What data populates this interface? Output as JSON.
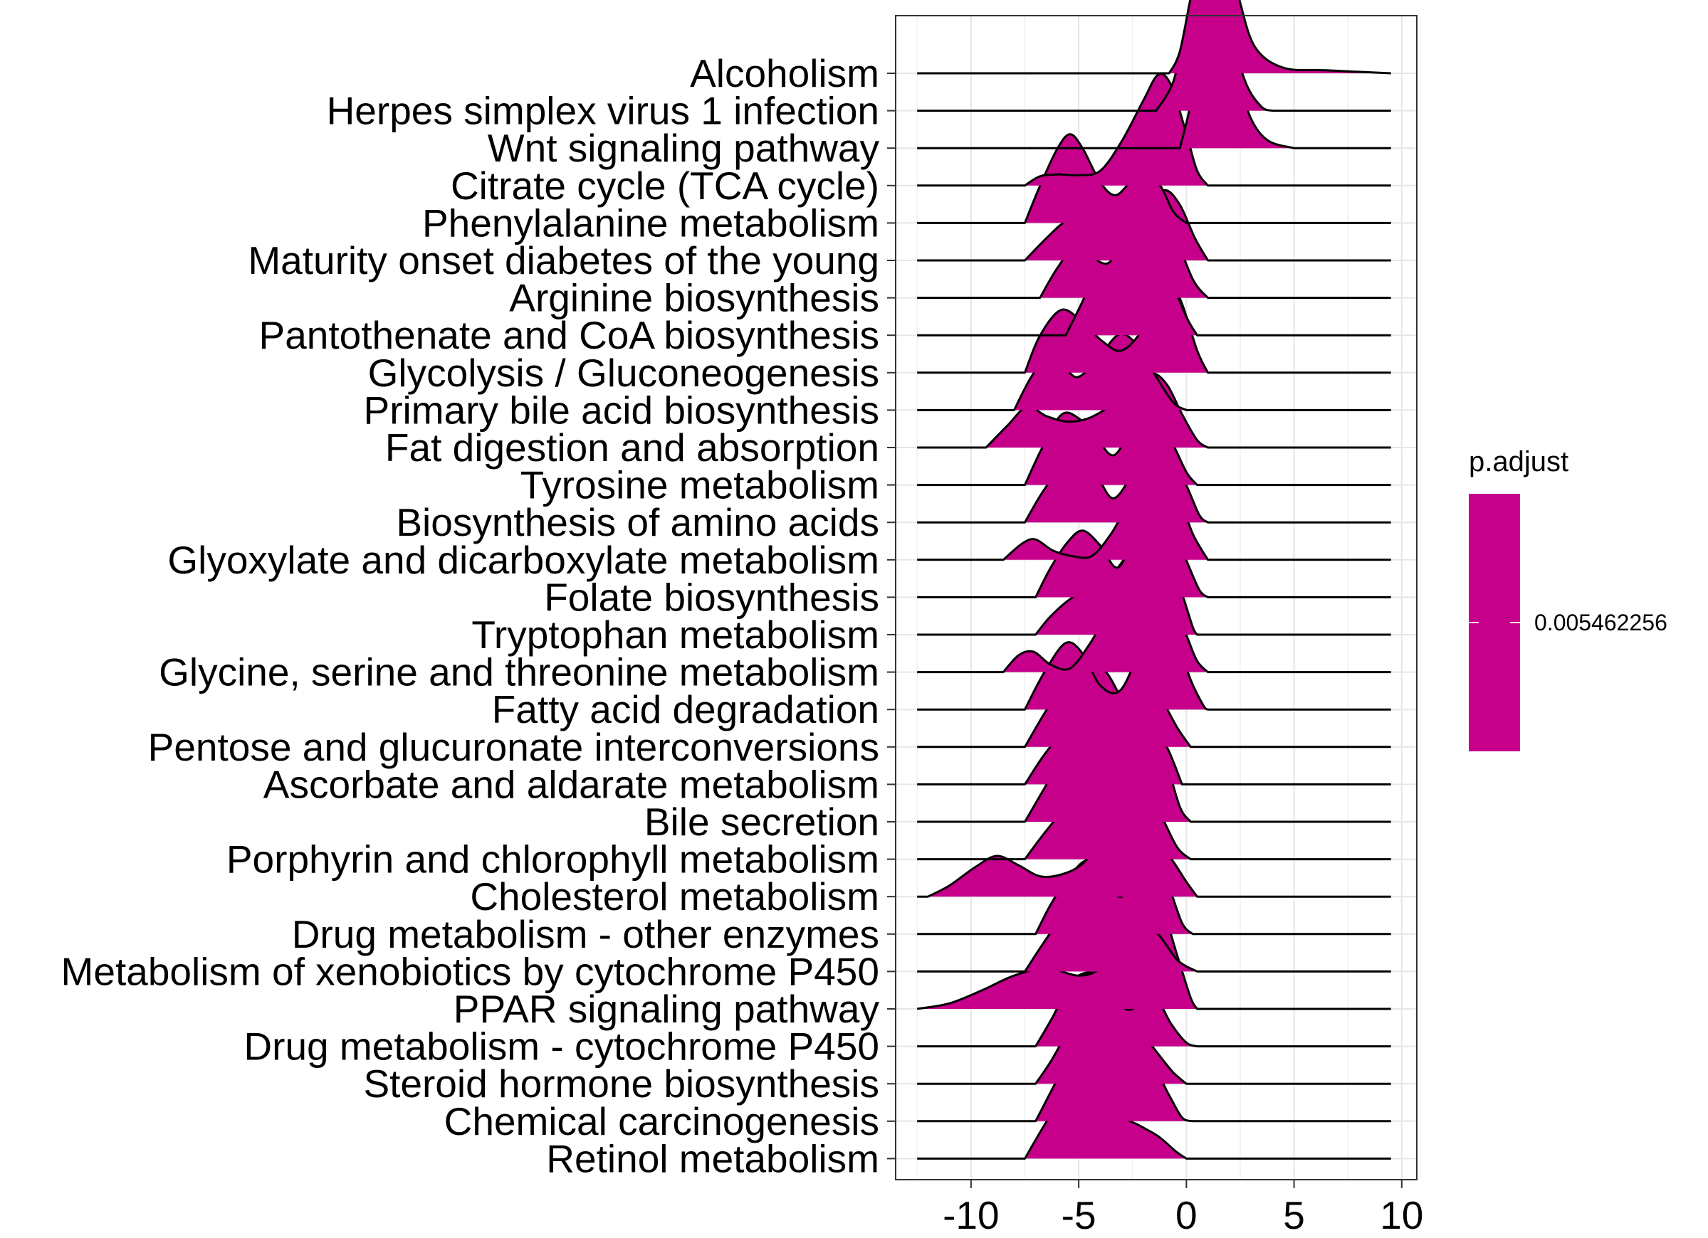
{
  "chart_data": {
    "type": "ridgeline",
    "xlim": [
      -13.5,
      10.7
    ],
    "x_ticks": [
      -10,
      -5,
      0,
      5,
      10
    ],
    "x_tick_labels": [
      "-10",
      "-5",
      "0",
      "5",
      "10"
    ],
    "grid": true,
    "legend": {
      "title": "p.adjust",
      "label": "0.005462256",
      "placement": "right",
      "color": "#C6008B"
    },
    "fill_color": "#C6008B",
    "categories": [
      "Alcoholism",
      "Herpes simplex virus 1 infection",
      "Wnt signaling pathway",
      "Citrate cycle (TCA cycle)",
      "Phenylalanine metabolism",
      "Maturity onset diabetes of the young",
      "Arginine biosynthesis",
      "Pantothenate and CoA biosynthesis",
      "Glycolysis / Gluconeogenesis",
      "Primary bile acid biosynthesis",
      "Fat digestion and absorption",
      "Tyrosine metabolism",
      "Biosynthesis of amino acids",
      "Glyoxylate and dicarboxylate metabolism",
      "Folate biosynthesis",
      "Tryptophan metabolism",
      "Glycine, serine and threonine metabolism",
      "Fatty acid degradation",
      "Pentose and glucuronate interconversions",
      "Ascorbate and aldarate metabolism",
      "Bile secretion",
      "Porphyrin and chlorophyll metabolism",
      "Cholesterol metabolism",
      "Drug metabolism - other enzymes",
      "Metabolism of xenobiotics by cytochrome P450",
      "PPAR signaling pathway",
      "Drug metabolism - cytochrome P450",
      "Steroid hormone biosynthesis",
      "Chemical carcinogenesis",
      "Retinol metabolism"
    ],
    "x_range": [
      -12.5,
      9.5
    ],
    "densities": [
      [
        [
          -0.8,
          0
        ],
        [
          -0.3,
          0.6
        ],
        [
          0.3,
          2.3
        ],
        [
          1.0,
          3.6
        ],
        [
          1.5,
          3.9
        ],
        [
          2.0,
          3.2
        ],
        [
          2.5,
          1.9
        ],
        [
          3.2,
          0.7
        ],
        [
          4.5,
          0.15
        ],
        [
          6.5,
          0.08
        ],
        [
          9.5,
          0
        ]
      ],
      [
        [
          -1.4,
          0
        ],
        [
          -0.6,
          0.8
        ],
        [
          0,
          2.4
        ],
        [
          0.5,
          3.5
        ],
        [
          1.0,
          3.9
        ],
        [
          1.5,
          3.4
        ],
        [
          2.1,
          2.0
        ],
        [
          2.8,
          0.7
        ],
        [
          3.5,
          0.1
        ],
        [
          4.0,
          0
        ]
      ],
      [
        [
          -0.3,
          0
        ],
        [
          0.2,
          1.2
        ],
        [
          0.7,
          2.9
        ],
        [
          1.2,
          3.6
        ],
        [
          1.8,
          3.1
        ],
        [
          2.4,
          1.9
        ],
        [
          3.0,
          0.8
        ],
        [
          3.8,
          0.2
        ],
        [
          5.0,
          0
        ]
      ],
      [
        [
          -7.5,
          0
        ],
        [
          -6.8,
          0.25
        ],
        [
          -6.0,
          0.3
        ],
        [
          -5.0,
          0.28
        ],
        [
          -4.0,
          0.4
        ],
        [
          -3.0,
          1.2
        ],
        [
          -2.0,
          2.3
        ],
        [
          -1.3,
          3.0
        ],
        [
          -0.7,
          2.7
        ],
        [
          0.0,
          1.4
        ],
        [
          0.5,
          0.4
        ],
        [
          1.0,
          0
        ]
      ],
      [
        [
          -7.5,
          0
        ],
        [
          -6.8,
          1.0
        ],
        [
          -6.0,
          2.0
        ],
        [
          -5.4,
          2.4
        ],
        [
          -4.8,
          2.0
        ],
        [
          -4.0,
          1.1
        ],
        [
          -3.3,
          0.75
        ],
        [
          -2.6,
          1.1
        ],
        [
          -1.9,
          1.4
        ],
        [
          -1.2,
          1.0
        ],
        [
          -0.6,
          0.3
        ],
        [
          0,
          0
        ]
      ],
      [
        [
          -7.5,
          0
        ],
        [
          -6.5,
          0.6
        ],
        [
          -5.5,
          1.1
        ],
        [
          -4.0,
          1.45
        ],
        [
          -2.6,
          1.2
        ],
        [
          -1.8,
          1.5
        ],
        [
          -1.0,
          1.9
        ],
        [
          -0.3,
          1.5
        ],
        [
          0.4,
          0.6
        ],
        [
          1.0,
          0
        ]
      ],
      [
        [
          -6.8,
          0
        ],
        [
          -6.0,
          0.8
        ],
        [
          -5.2,
          1.35
        ],
        [
          -4.4,
          1.1
        ],
        [
          -3.6,
          0.95
        ],
        [
          -2.8,
          1.7
        ],
        [
          -2.0,
          2.4
        ],
        [
          -1.3,
          2.55
        ],
        [
          -0.6,
          1.8
        ],
        [
          0.3,
          0.5
        ],
        [
          1.0,
          0
        ]
      ],
      [
        [
          -5.6,
          0
        ],
        [
          -5.0,
          0.7
        ],
        [
          -4.3,
          1.5
        ],
        [
          -3.4,
          2.0
        ],
        [
          -2.5,
          2.2
        ],
        [
          -1.8,
          2.5
        ],
        [
          -1.3,
          2.4
        ],
        [
          -0.7,
          1.5
        ],
        [
          0,
          0.5
        ],
        [
          0.5,
          0
        ]
      ],
      [
        [
          -7.5,
          0
        ],
        [
          -6.8,
          1.0
        ],
        [
          -5.8,
          1.7
        ],
        [
          -4.8,
          1.35
        ],
        [
          -3.9,
          0.85
        ],
        [
          -3.0,
          0.6
        ],
        [
          -2.0,
          1.2
        ],
        [
          -1.0,
          2.4
        ],
        [
          -0.3,
          2.0
        ],
        [
          0.5,
          0.6
        ],
        [
          1.0,
          0
        ]
      ],
      [
        [
          -8.0,
          0
        ],
        [
          -7.2,
          0.9
        ],
        [
          -6.4,
          1.45
        ],
        [
          -5.6,
          1.1
        ],
        [
          -5.0,
          0.9
        ],
        [
          -4.1,
          1.4
        ],
        [
          -3.1,
          2.05
        ],
        [
          -2.2,
          1.7
        ],
        [
          -1.4,
          0.9
        ],
        [
          -0.6,
          0.2
        ],
        [
          0,
          0
        ]
      ],
      [
        [
          -9.3,
          0
        ],
        [
          -8.3,
          0.6
        ],
        [
          -7.4,
          1.1
        ],
        [
          -6.5,
          0.85
        ],
        [
          -5.5,
          0.7
        ],
        [
          -4.5,
          0.8
        ],
        [
          -3.3,
          1.2
        ],
        [
          -2.3,
          1.6
        ],
        [
          -1.6,
          2.0
        ],
        [
          -0.9,
          1.7
        ],
        [
          -0.2,
          0.9
        ],
        [
          0.5,
          0.2
        ],
        [
          1,
          0
        ]
      ],
      [
        [
          -7.5,
          0
        ],
        [
          -6.7,
          1.0
        ],
        [
          -5.8,
          1.9
        ],
        [
          -5.0,
          1.8
        ],
        [
          -4.2,
          1.3
        ],
        [
          -3.4,
          0.8
        ],
        [
          -2.6,
          1.4
        ],
        [
          -1.6,
          1.9
        ],
        [
          -0.8,
          1.3
        ],
        [
          0,
          0.35
        ],
        [
          0.5,
          0
        ]
      ],
      [
        [
          -7.5,
          0
        ],
        [
          -6.7,
          0.8
        ],
        [
          -5.8,
          1.5
        ],
        [
          -5.0,
          1.7
        ],
        [
          -4.2,
          1.3
        ],
        [
          -3.4,
          0.65
        ],
        [
          -2.5,
          1.3
        ],
        [
          -1.6,
          2.1
        ],
        [
          -0.9,
          2.0
        ],
        [
          0,
          1.0
        ],
        [
          0.6,
          0.2
        ],
        [
          1,
          0
        ]
      ],
      [
        [
          -8.5,
          0
        ],
        [
          -7.6,
          0.45
        ],
        [
          -7.0,
          0.55
        ],
        [
          -6.2,
          0.25
        ],
        [
          -5.3,
          0.1
        ],
        [
          -4.4,
          0.1
        ],
        [
          -3.5,
          0.7
        ],
        [
          -2.6,
          1.6
        ],
        [
          -1.8,
          2.1
        ],
        [
          -1.1,
          2.5
        ],
        [
          -0.4,
          1.8
        ],
        [
          0.3,
          0.7
        ],
        [
          1.0,
          0
        ]
      ],
      [
        [
          -7.0,
          0
        ],
        [
          -6.3,
          0.8
        ],
        [
          -5.5,
          1.5
        ],
        [
          -4.8,
          1.8
        ],
        [
          -4.0,
          1.4
        ],
        [
          -3.2,
          0.8
        ],
        [
          -2.4,
          1.6
        ],
        [
          -1.4,
          2.4
        ],
        [
          -0.7,
          2.0
        ],
        [
          0,
          1.0
        ],
        [
          0.6,
          0.2
        ],
        [
          1.0,
          0
        ]
      ],
      [
        [
          -7.0,
          0
        ],
        [
          -6.3,
          0.5
        ],
        [
          -5.3,
          1.0
        ],
        [
          -4.2,
          1.3
        ],
        [
          -3.2,
          1.8
        ],
        [
          -2.3,
          2.55
        ],
        [
          -1.6,
          2.8
        ],
        [
          -0.9,
          2.2
        ],
        [
          -0.2,
          1.1
        ],
        [
          0.3,
          0.2
        ],
        [
          0.5,
          0
        ]
      ],
      [
        [
          -8.5,
          0
        ],
        [
          -7.8,
          0.45
        ],
        [
          -7.1,
          0.55
        ],
        [
          -6.3,
          0.2
        ],
        [
          -5.4,
          0.1
        ],
        [
          -4.5,
          0.75
        ],
        [
          -3.5,
          1.7
        ],
        [
          -2.5,
          2.1
        ],
        [
          -1.5,
          2.4
        ],
        [
          -0.8,
          2.1
        ],
        [
          0,
          1.0
        ],
        [
          0.5,
          0.3
        ],
        [
          1.0,
          0
        ]
      ],
      [
        [
          -7.5,
          0
        ],
        [
          -6.6,
          1.0
        ],
        [
          -5.6,
          1.8
        ],
        [
          -4.8,
          1.5
        ],
        [
          -4.0,
          0.65
        ],
        [
          -3.1,
          0.5
        ],
        [
          -2.2,
          1.5
        ],
        [
          -1.3,
          2.4
        ],
        [
          -0.6,
          2.1
        ],
        [
          0.2,
          0.8
        ],
        [
          0.8,
          0.1
        ],
        [
          1,
          0
        ]
      ],
      [
        [
          -7.5,
          0
        ],
        [
          -6.6,
          0.9
        ],
        [
          -5.6,
          1.8
        ],
        [
          -4.6,
          2.3
        ],
        [
          -3.7,
          2.0
        ],
        [
          -2.8,
          1.2
        ],
        [
          -1.9,
          1.5
        ],
        [
          -1.2,
          1.3
        ],
        [
          -0.4,
          0.5
        ],
        [
          0.2,
          0
        ]
      ],
      [
        [
          -7.5,
          0
        ],
        [
          -6.6,
          0.8
        ],
        [
          -5.6,
          1.5
        ],
        [
          -4.6,
          2.0
        ],
        [
          -3.8,
          2.1
        ],
        [
          -3.0,
          1.9
        ],
        [
          -2.2,
          1.3
        ],
        [
          -1.5,
          1.35
        ],
        [
          -0.9,
          1.0
        ],
        [
          -0.2,
          0
        ]
      ],
      [
        [
          -7.5,
          0
        ],
        [
          -6.6,
          0.9
        ],
        [
          -5.6,
          1.9
        ],
        [
          -4.6,
          2.3
        ],
        [
          -3.7,
          2.2
        ],
        [
          -2.7,
          2.2
        ],
        [
          -1.7,
          2.3
        ],
        [
          -1.0,
          1.7
        ],
        [
          -0.3,
          0.4
        ],
        [
          0.2,
          0
        ]
      ],
      [
        [
          -7.5,
          0
        ],
        [
          -6.6,
          0.7
        ],
        [
          -5.6,
          1.4
        ],
        [
          -4.6,
          1.9
        ],
        [
          -3.8,
          2.2
        ],
        [
          -3.0,
          1.8
        ],
        [
          -2.3,
          1.7
        ],
        [
          -1.7,
          1.8
        ],
        [
          -1.1,
          1.1
        ],
        [
          -0.4,
          0.3
        ],
        [
          0.2,
          0
        ]
      ],
      [
        [
          -12.0,
          0
        ],
        [
          -11.0,
          0.3
        ],
        [
          -9.8,
          0.8
        ],
        [
          -8.8,
          1.1
        ],
        [
          -7.8,
          0.85
        ],
        [
          -6.8,
          0.55
        ],
        [
          -5.8,
          0.6
        ],
        [
          -4.8,
          0.9
        ],
        [
          -3.8,
          1.6
        ],
        [
          -2.8,
          1.9
        ],
        [
          -1.8,
          1.7
        ],
        [
          -0.8,
          1.1
        ],
        [
          0,
          0.4
        ],
        [
          0.5,
          0
        ]
      ],
      [
        [
          -7.0,
          0
        ],
        [
          -6.3,
          0.8
        ],
        [
          -5.5,
          1.5
        ],
        [
          -4.6,
          2.0
        ],
        [
          -3.8,
          1.6
        ],
        [
          -3.1,
          1.0
        ],
        [
          -2.4,
          1.5
        ],
        [
          -1.6,
          2.0
        ],
        [
          -0.9,
          1.4
        ],
        [
          -0.2,
          0.3
        ],
        [
          0.3,
          0
        ]
      ],
      [
        [
          -7.5,
          0
        ],
        [
          -6.6,
          0.8
        ],
        [
          -5.6,
          1.6
        ],
        [
          -4.6,
          2.0
        ],
        [
          -3.7,
          1.8
        ],
        [
          -2.8,
          1.1
        ],
        [
          -2.0,
          1.2
        ],
        [
          -1.3,
          1.0
        ],
        [
          -0.4,
          0.3
        ],
        [
          0.5,
          0
        ]
      ],
      [
        [
          -12.5,
          0
        ],
        [
          -11.0,
          0.15
        ],
        [
          -9.5,
          0.5
        ],
        [
          -8.0,
          0.9
        ],
        [
          -6.5,
          1.1
        ],
        [
          -5.0,
          0.9
        ],
        [
          -4.0,
          1.1
        ],
        [
          -3.0,
          1.8
        ],
        [
          -2.2,
          2.7
        ],
        [
          -1.6,
          3.0
        ],
        [
          -1.0,
          2.5
        ],
        [
          -0.4,
          1.4
        ],
        [
          0.2,
          0.3
        ],
        [
          0.5,
          0
        ]
      ],
      [
        [
          -7.0,
          0
        ],
        [
          -6.2,
          0.8
        ],
        [
          -5.4,
          1.7
        ],
        [
          -4.5,
          2.0
        ],
        [
          -3.6,
          1.7
        ],
        [
          -2.8,
          1.0
        ],
        [
          -2.0,
          1.2
        ],
        [
          -1.4,
          1.3
        ],
        [
          -0.7,
          0.6
        ],
        [
          0,
          0.1
        ],
        [
          0.5,
          0
        ]
      ],
      [
        [
          -7.0,
          0
        ],
        [
          -6.3,
          0.6
        ],
        [
          -5.5,
          1.4
        ],
        [
          -4.6,
          2.1
        ],
        [
          -3.8,
          2.4
        ],
        [
          -3.0,
          2.1
        ],
        [
          -2.1,
          1.4
        ],
        [
          -1.3,
          0.8
        ],
        [
          -0.6,
          0.3
        ],
        [
          0,
          0
        ]
      ],
      [
        [
          -7.0,
          0
        ],
        [
          -6.2,
          0.9
        ],
        [
          -5.4,
          1.8
        ],
        [
          -4.6,
          2.1
        ],
        [
          -3.8,
          1.8
        ],
        [
          -3.0,
          1.2
        ],
        [
          -2.2,
          1.2
        ],
        [
          -1.5,
          1.4
        ],
        [
          -0.8,
          0.7
        ],
        [
          -0.2,
          0.1
        ],
        [
          0.3,
          0
        ]
      ],
      [
        [
          -7.5,
          0
        ],
        [
          -6.6,
          0.9
        ],
        [
          -5.6,
          1.8
        ],
        [
          -4.8,
          2.2
        ],
        [
          -4.0,
          2.0
        ],
        [
          -3.1,
          1.2
        ],
        [
          -2.2,
          0.9
        ],
        [
          -1.3,
          0.6
        ],
        [
          -0.5,
          0.2
        ],
        [
          0,
          0
        ]
      ]
    ]
  }
}
